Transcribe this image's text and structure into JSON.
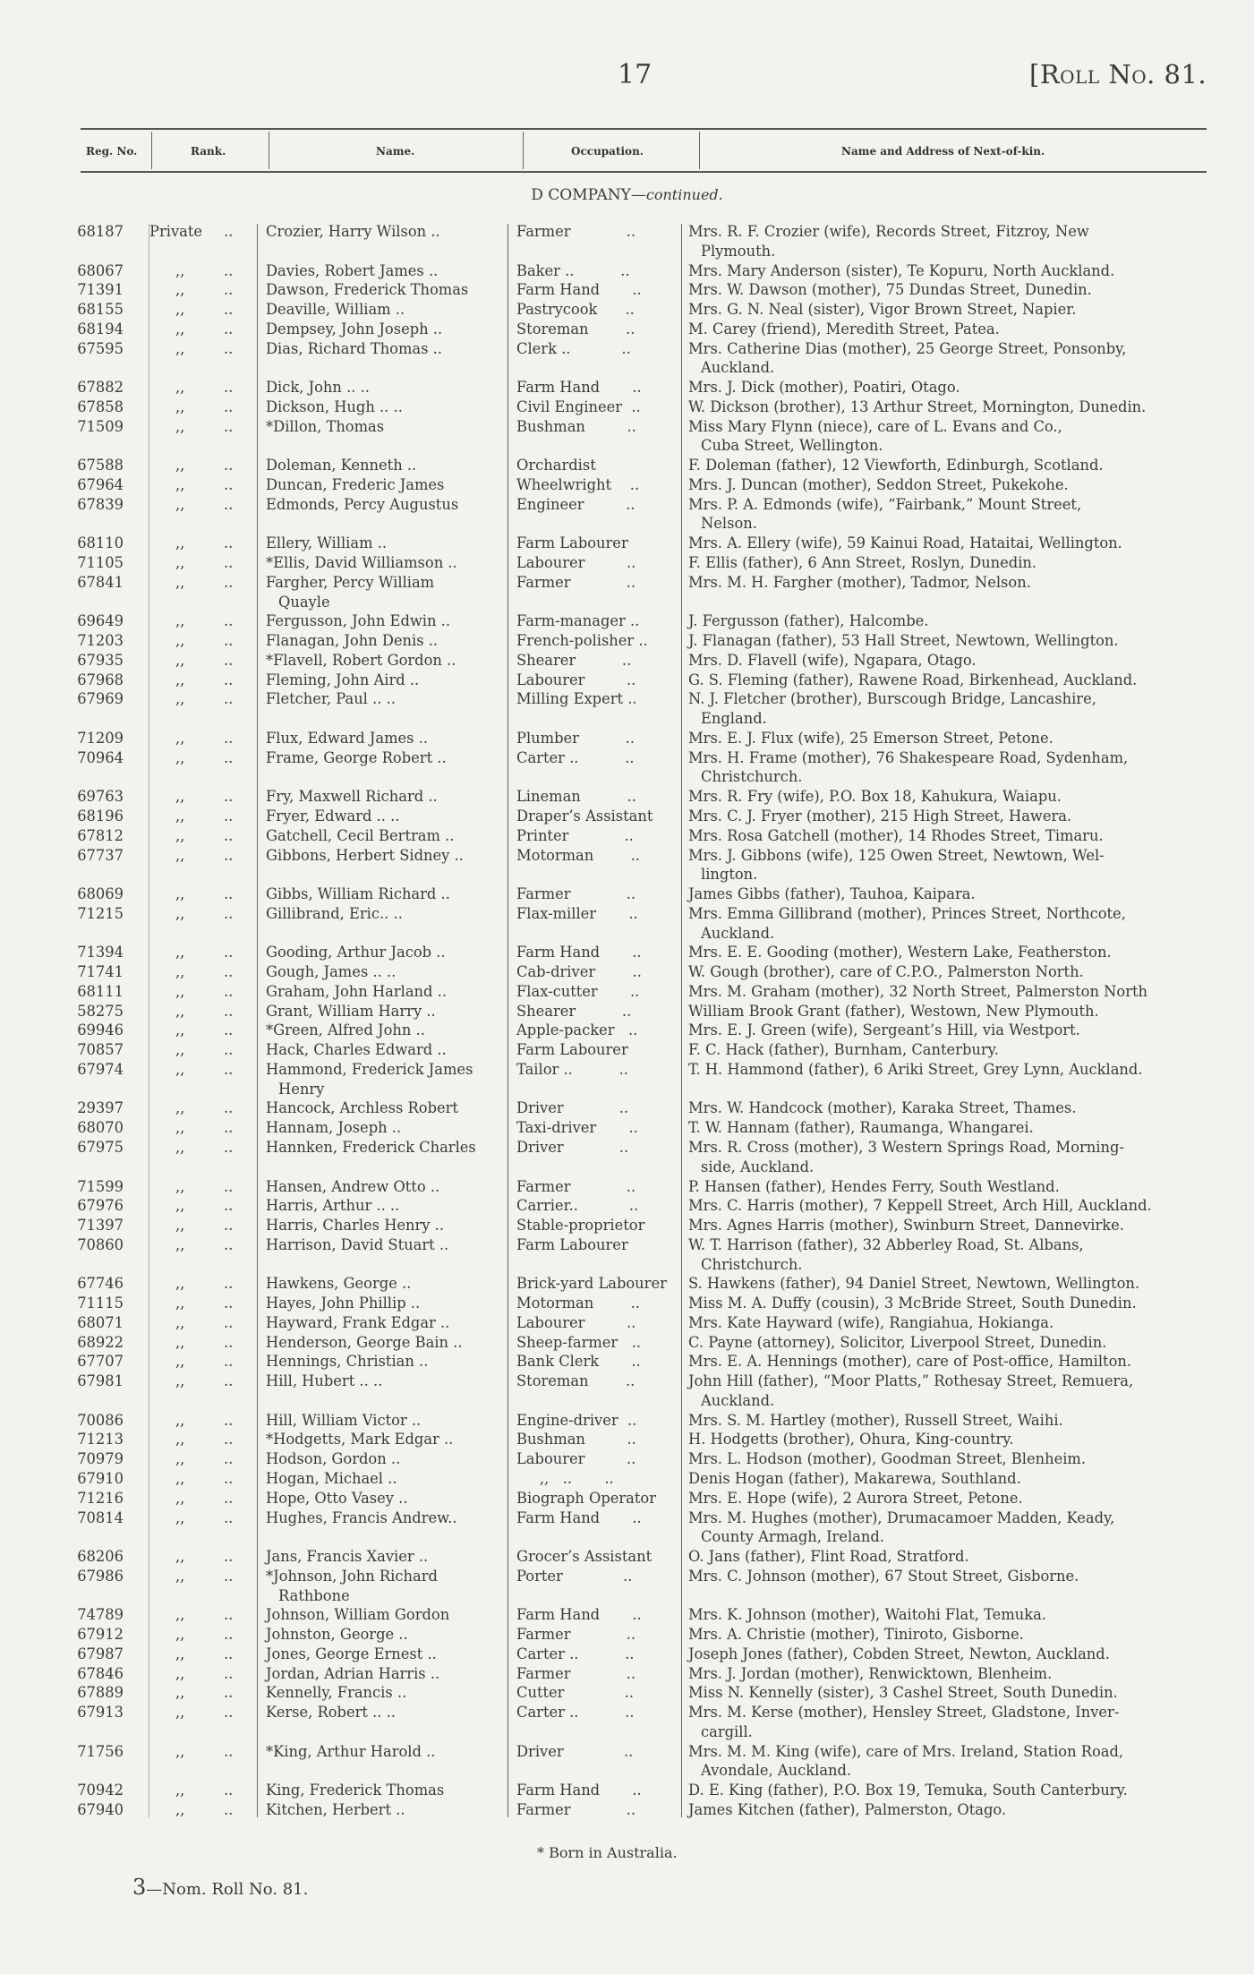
{
  "header": {
    "page_number": "17",
    "roll_title": "[Roll No. 81."
  },
  "columns": {
    "reg": "Reg. No.",
    "rank": "Rank.",
    "name": "Name.",
    "occupation": "Occupation.",
    "kin": "Name and Address of Next-of-kin."
  },
  "company": {
    "title": "D COMPANY—",
    "suffix": "continued."
  },
  "leader": "..",
  "rows": [
    {
      "reg": "68187",
      "rank": "Private",
      "name": [
        "Crozier, Harry Wilson  .."
      ],
      "occ": "Farmer            ..",
      "kin": [
        "Mrs. R. F. Crozier (wife), Records Street, Fitzroy, New",
        "Plymouth."
      ]
    },
    {
      "reg": "68067",
      "rank": ",,",
      "name": [
        "Davies, Robert James  .."
      ],
      "occ": "Baker ..          ..",
      "kin": [
        "Mrs. Mary Anderson (sister), Te Kopuru, North Auckland."
      ]
    },
    {
      "reg": "71391",
      "rank": ",,",
      "name": [
        "Dawson, Frederick Thomas"
      ],
      "occ": "Farm Hand       ..",
      "kin": [
        "Mrs. W. Dawson (mother), 75 Dundas Street, Dunedin."
      ]
    },
    {
      "reg": "68155",
      "rank": ",,",
      "name": [
        "Deaville, William        .."
      ],
      "occ": "Pastrycook      ..",
      "kin": [
        "Mrs. G. N. Neal (sister), Vigor Brown Street, Napier."
      ]
    },
    {
      "reg": "68194",
      "rank": ",,",
      "name": [
        "Dempsey, John Joseph .."
      ],
      "occ": "Storeman        ..",
      "kin": [
        "M. Carey (friend), Meredith Street, Patea."
      ]
    },
    {
      "reg": "67595",
      "rank": ",,",
      "name": [
        "Dias, Richard Thomas  .."
      ],
      "occ": "Clerk ..           ..",
      "kin": [
        "Mrs. Catherine Dias (mother), 25 George Street, Ponsonby,",
        "Auckland."
      ]
    },
    {
      "reg": "67882",
      "rank": ",,",
      "name": [
        "Dick, John  ..          .."
      ],
      "occ": "Farm Hand       ..",
      "kin": [
        "Mrs. J. Dick (mother), Poatiri, Otago."
      ]
    },
    {
      "reg": "67858",
      "rank": ",,",
      "name": [
        "Dickson, Hugh ..       .."
      ],
      "occ": "Civil Engineer  ..",
      "kin": [
        "W. Dickson (brother), 13 Arthur Street, Mornington, Dunedin."
      ]
    },
    {
      "reg": "71509",
      "rank": ",,",
      "name": [
        "*Dillon, Thomas"
      ],
      "occ": "Bushman         ..",
      "kin": [
        "Miss Mary Flynn (niece), care of L. Evans and Co.,",
        "Cuba Street, Wellington."
      ]
    },
    {
      "reg": "67588",
      "rank": ",,",
      "name": [
        "Doleman, Kenneth       .."
      ],
      "occ": "Orchardist",
      "kin": [
        "F. Doleman (father), 12 Viewforth, Edinburgh, Scotland."
      ]
    },
    {
      "reg": "67964",
      "rank": ",,",
      "name": [
        "Duncan, Frederic James"
      ],
      "occ": "Wheelwright    ..",
      "kin": [
        "Mrs. J. Duncan (mother), Seddon Street, Pukekohe."
      ]
    },
    {
      "reg": "67839",
      "rank": ",,",
      "name": [
        "Edmonds, Percy Augustus"
      ],
      "occ": "Engineer         ..",
      "kin": [
        "Mrs. P. A. Edmonds (wife), “Fairbank,” Mount Street,",
        "Nelson."
      ]
    },
    {
      "reg": "68110",
      "rank": ",,",
      "name": [
        "Ellery, William          .."
      ],
      "occ": "Farm Labourer",
      "kin": [
        "Mrs. A. Ellery (wife), 59 Kainui Road, Hataitai, Wellington."
      ]
    },
    {
      "reg": "71105",
      "rank": ",,",
      "name": [
        "*Ellis, David Williamson .."
      ],
      "occ": "Labourer         ..",
      "kin": [
        "F. Ellis (father), 6 Ann Street, Roslyn, Dunedin."
      ]
    },
    {
      "reg": "67841",
      "rank": ",,",
      "name": [
        "Fargher, Percy William",
        "Quayle"
      ],
      "occ": "Farmer            ..",
      "kin": [
        "Mrs. M. H. Fargher (mother), Tadmor, Nelson."
      ]
    },
    {
      "reg": "69649",
      "rank": ",,",
      "name": [
        "Fergusson, John Edwin .."
      ],
      "occ": "Farm-manager ..",
      "kin": [
        "J. Fergusson (father), Halcombe."
      ]
    },
    {
      "reg": "71203",
      "rank": ",,",
      "name": [
        "Flanagan, John Denis  .."
      ],
      "occ": "French-polisher ..",
      "kin": [
        "J. Flanagan (father), 53 Hall Street, Newtown, Wellington."
      ]
    },
    {
      "reg": "67935",
      "rank": ",,",
      "name": [
        "*Flavell, Robert Gordon .."
      ],
      "occ": "Shearer          ..",
      "kin": [
        "Mrs. D. Flavell (wife), Ngapara, Otago."
      ]
    },
    {
      "reg": "67968",
      "rank": ",,",
      "name": [
        "Fleming, John Aird     .."
      ],
      "occ": "Labourer         ..",
      "kin": [
        "G. S. Fleming (father), Rawene Road, Birkenhead, Auckland."
      ]
    },
    {
      "reg": "67969",
      "rank": ",,",
      "name": [
        "Fletcher, Paul ..        .."
      ],
      "occ": "Milling Expert ..",
      "kin": [
        "N. J. Fletcher (brother), Burscough Bridge, Lancashire,",
        "England."
      ]
    },
    {
      "reg": "71209",
      "rank": ",,",
      "name": [
        "Flux, Edward James     .."
      ],
      "occ": "Plumber          ..",
      "kin": [
        "Mrs. E. J. Flux (wife), 25 Emerson Street, Petone."
      ]
    },
    {
      "reg": "70964",
      "rank": ",,",
      "name": [
        "Frame, George Robert  .."
      ],
      "occ": "Carter ..          ..",
      "kin": [
        "Mrs. H. Frame (mother), 76 Shakespeare Road, Sydenham,",
        "Christchurch."
      ]
    },
    {
      "reg": "69763",
      "rank": ",,",
      "name": [
        "Fry, Maxwell Richard   .."
      ],
      "occ": "Lineman          ..",
      "kin": [
        "Mrs. R. Fry (wife), P.O. Box 18, Kahukura, Waiapu."
      ]
    },
    {
      "reg": "68196",
      "rank": ",,",
      "name": [
        "Fryer, Edward ..         .."
      ],
      "occ": "Draper’s Assistant",
      "kin": [
        "Mrs. C. J. Fryer (mother), 215 High Street, Hawera."
      ]
    },
    {
      "reg": "67812",
      "rank": ",,",
      "name": [
        "Gatchell, Cecil Bertram .."
      ],
      "occ": "Printer            ..",
      "kin": [
        "Mrs. Rosa Gatchell (mother), 14 Rhodes Street, Timaru."
      ]
    },
    {
      "reg": "67737",
      "rank": ",,",
      "name": [
        "Gibbons, Herbert Sidney .."
      ],
      "occ": "Motorman        ..",
      "kin": [
        "Mrs. J. Gibbons (wife), 125 Owen Street, Newtown, Wel-",
        "lington."
      ]
    },
    {
      "reg": "68069",
      "rank": ",,",
      "name": [
        "Gibbs, William Richard .."
      ],
      "occ": "Farmer            ..",
      "kin": [
        "James Gibbs (father), Tauhoa, Kaipara."
      ]
    },
    {
      "reg": "71215",
      "rank": ",,",
      "name": [
        "Gillibrand, Eric..        .."
      ],
      "occ": "Flax-miller       ..",
      "kin": [
        "Mrs. Emma Gillibrand (mother), Princes Street, Northcote,",
        "Auckland."
      ]
    },
    {
      "reg": "71394",
      "rank": ",,",
      "name": [
        "Gooding, Arthur Jacob  .."
      ],
      "occ": "Farm Hand       ..",
      "kin": [
        "Mrs. E. E. Gooding (mother), Western Lake, Featherston."
      ]
    },
    {
      "reg": "71741",
      "rank": ",,",
      "name": [
        "Gough, James ..          .."
      ],
      "occ": "Cab-driver        ..",
      "kin": [
        "W. Gough (brother), care of C.P.O., Palmerston North."
      ]
    },
    {
      "reg": "68111",
      "rank": ",,",
      "name": [
        "Graham, John Harland  .."
      ],
      "occ": "Flax-cutter       ..",
      "kin": [
        "Mrs. M. Graham (mother), 32 North Street, Palmerston North"
      ]
    },
    {
      "reg": "58275",
      "rank": ",,",
      "name": [
        "Grant, William Harry    .."
      ],
      "occ": "Shearer          ..",
      "kin": [
        "William Brook Grant (father), Westown, New Plymouth."
      ]
    },
    {
      "reg": "69946",
      "rank": ",,",
      "name": [
        "*Green, Alfred John      .."
      ],
      "occ": "Apple-packer   ..",
      "kin": [
        "Mrs. E. J. Green (wife), Sergeant’s Hill, via Westport."
      ]
    },
    {
      "reg": "70857",
      "rank": ",,",
      "name": [
        "Hack, Charles Edward   .."
      ],
      "occ": "Farm Labourer",
      "kin": [
        "F. C. Hack (father), Burnham, Canterbury."
      ]
    },
    {
      "reg": "67974",
      "rank": ",,",
      "name": [
        "Hammond, Frederick James",
        "Henry"
      ],
      "occ": "Tailor ..          ..",
      "kin": [
        "T. H. Hammond (father), 6 Ariki Street, Grey Lynn, Auckland."
      ]
    },
    {
      "reg": "29397",
      "rank": ",,",
      "name": [
        "Hancock, Archless Robert"
      ],
      "occ": "Driver            ..",
      "kin": [
        "Mrs. W. Handcock (mother), Karaka Street, Thames."
      ]
    },
    {
      "reg": "68070",
      "rank": ",,",
      "name": [
        "Hannam, Joseph          .."
      ],
      "occ": "Taxi-driver       ..",
      "kin": [
        "T. W. Hannam (father), Raumanga, Whangarei."
      ]
    },
    {
      "reg": "67975",
      "rank": ",,",
      "name": [
        "Hannken, Frederick Charles"
      ],
      "occ": "Driver            ..",
      "kin": [
        "Mrs. R. Cross (mother), 3 Western Springs Road, Morning-",
        "side, Auckland."
      ]
    },
    {
      "reg": "71599",
      "rank": ",,",
      "name": [
        "Hansen, Andrew Otto    .."
      ],
      "occ": "Farmer            ..",
      "kin": [
        "P. Hansen (father), Hendes Ferry, South Westland."
      ]
    },
    {
      "reg": "67976",
      "rank": ",,",
      "name": [
        "Harris, Arthur ..         .."
      ],
      "occ": "Carrier..           ..",
      "kin": [
        "Mrs. C. Harris (mother), 7 Keppell Street, Arch Hill, Auckland."
      ]
    },
    {
      "reg": "71397",
      "rank": ",,",
      "name": [
        "Harris, Charles Henry  .."
      ],
      "occ": "Stable-proprietor",
      "kin": [
        "Mrs. Agnes Harris (mother), Swinburn Street, Dannevirke."
      ]
    },
    {
      "reg": "70860",
      "rank": ",,",
      "name": [
        "Harrison, David Stuart .."
      ],
      "occ": "Farm Labourer",
      "kin": [
        "W. T. Harrison (father), 32 Abberley Road, St. Albans,",
        "Christchurch."
      ]
    },
    {
      "reg": "67746",
      "rank": ",,",
      "name": [
        "Hawkens, George         .."
      ],
      "occ": "Brick-yard Labourer",
      "kin": [
        "S. Hawkens (father), 94 Daniel Street, Newtown, Wellington."
      ]
    },
    {
      "reg": "71115",
      "rank": ",,",
      "name": [
        "Hayes, John Phillip      .."
      ],
      "occ": "Motorman        ..",
      "kin": [
        "Miss M. A. Duffy (cousin), 3 McBride Street, South Dunedin."
      ]
    },
    {
      "reg": "68071",
      "rank": ",,",
      "name": [
        "Hayward, Frank Edgar  .."
      ],
      "occ": "Labourer         ..",
      "kin": [
        "Mrs. Kate Hayward (wife), Rangiahua, Hokianga."
      ]
    },
    {
      "reg": "68922",
      "rank": ",,",
      "name": [
        "Henderson, George Bain .."
      ],
      "occ": "Sheep-farmer   ..",
      "kin": [
        "C. Payne (attorney), Solicitor, Liverpool Street, Dunedin."
      ]
    },
    {
      "reg": "67707",
      "rank": ",,",
      "name": [
        "Hennings, Christian     .."
      ],
      "occ": "Bank Clerk       ..",
      "kin": [
        "Mrs. E. A. Hennings (mother), care of Post-office, Hamilton."
      ]
    },
    {
      "reg": "67981",
      "rank": ",,",
      "name": [
        "Hill, Hubert  ..          .."
      ],
      "occ": "Storeman        ..",
      "kin": [
        "John Hill (father), “Moor Platts,” Rothesay Street, Remuera,",
        "Auckland."
      ]
    },
    {
      "reg": "70086",
      "rank": ",,",
      "name": [
        "Hill, William Victor     .."
      ],
      "occ": "Engine-driver  ..",
      "kin": [
        "Mrs. S. M. Hartley (mother), Russell Street, Waihi."
      ]
    },
    {
      "reg": "71213",
      "rank": ",,",
      "name": [
        "*Hodgetts, Mark Edgar  .."
      ],
      "occ": "Bushman         ..",
      "kin": [
        "H. Hodgetts (brother), Ohura, King-country."
      ]
    },
    {
      "reg": "70979",
      "rank": ",,",
      "name": [
        "Hodson, Gordon          .."
      ],
      "occ": "Labourer         ..",
      "kin": [
        "Mrs. L. Hodson (mother), Goodman Street, Blenheim."
      ]
    },
    {
      "reg": "67910",
      "rank": ",,",
      "name": [
        "Hogan, Michael           .."
      ],
      "occ": "     ,,   ..       ..",
      "kin": [
        "Denis Hogan (father), Makarewa, Southland."
      ]
    },
    {
      "reg": "71216",
      "rank": ",,",
      "name": [
        "Hope, Otto Vasey         .."
      ],
      "occ": "Biograph Operator",
      "kin": [
        "Mrs. E. Hope (wife), 2 Aurora Street, Petone."
      ]
    },
    {
      "reg": "70814",
      "rank": ",,",
      "name": [
        "Hughes, Francis Andrew.."
      ],
      "occ": "Farm Hand       ..",
      "kin": [
        "Mrs. M. Hughes (mother), Drumacamoer Madden, Keady,",
        "County Armagh, Ireland."
      ]
    },
    {
      "reg": "68206",
      "rank": ",,",
      "name": [
        "Jans, Francis Xavier    .."
      ],
      "occ": "Grocer’s Assistant",
      "kin": [
        "O. Jans (father), Flint Road, Stratford."
      ]
    },
    {
      "reg": "67986",
      "rank": ",,",
      "name": [
        "*Johnson, John Richard",
        "Rathbone"
      ],
      "occ": "Porter             ..",
      "kin": [
        "Mrs. C. Johnson (mother), 67 Stout Street, Gisborne."
      ]
    },
    {
      "reg": "74789",
      "rank": ",,",
      "name": [
        "Johnson, William Gordon"
      ],
      "occ": "Farm Hand       ..",
      "kin": [
        "Mrs. K. Johnson (mother), Waitohi Flat, Temuka."
      ]
    },
    {
      "reg": "67912",
      "rank": ",,",
      "name": [
        "Johnston, George        .."
      ],
      "occ": "Farmer            ..",
      "kin": [
        "Mrs. A. Christie (mother), Tiniroto, Gisborne."
      ]
    },
    {
      "reg": "67987",
      "rank": ",,",
      "name": [
        "Jones, George Ernest    .."
      ],
      "occ": "Carter ..          ..",
      "kin": [
        "Joseph Jones (father), Cobden Street, Newton, Auckland."
      ]
    },
    {
      "reg": "67846",
      "rank": ",,",
      "name": [
        "Jordan, Adrian Harris   .."
      ],
      "occ": "Farmer            ..",
      "kin": [
        "Mrs. J. Jordan (mother), Renwicktown, Blenheim."
      ]
    },
    {
      "reg": "67889",
      "rank": ",,",
      "name": [
        "Kennelly, Francis        .."
      ],
      "occ": "Cutter             ..",
      "kin": [
        "Miss N. Kennelly (sister), 3 Cashel Street, South Dunedin."
      ]
    },
    {
      "reg": "67913",
      "rank": ",,",
      "name": [
        "Kerse, Robert  ..         .."
      ],
      "occ": "Carter ..          ..",
      "kin": [
        "Mrs. M. Kerse (mother), Hensley Street, Gladstone, Inver-",
        "cargill."
      ]
    },
    {
      "reg": "71756",
      "rank": ",,",
      "name": [
        "*King, Arthur Harold     .."
      ],
      "occ": "Driver             ..",
      "kin": [
        "Mrs. M. M. King (wife), care of Mrs. Ireland, Station Road,",
        "Avondale, Auckland."
      ]
    },
    {
      "reg": "70942",
      "rank": ",,",
      "name": [
        "King, Frederick Thomas"
      ],
      "occ": "Farm Hand       ..",
      "kin": [
        "D. E. King (father), P.O. Box 19, Temuka, South Canterbury."
      ]
    },
    {
      "reg": "67940",
      "rank": ",,",
      "name": [
        "Kitchen, Herbert         .."
      ],
      "occ": "Farmer            ..",
      "kin": [
        "James Kitchen (father), Palmerston, Otago."
      ]
    }
  ],
  "footnote": "* Born in Australia.",
  "footer": {
    "number": "3",
    "text": "—Nom. Roll No. 81."
  }
}
